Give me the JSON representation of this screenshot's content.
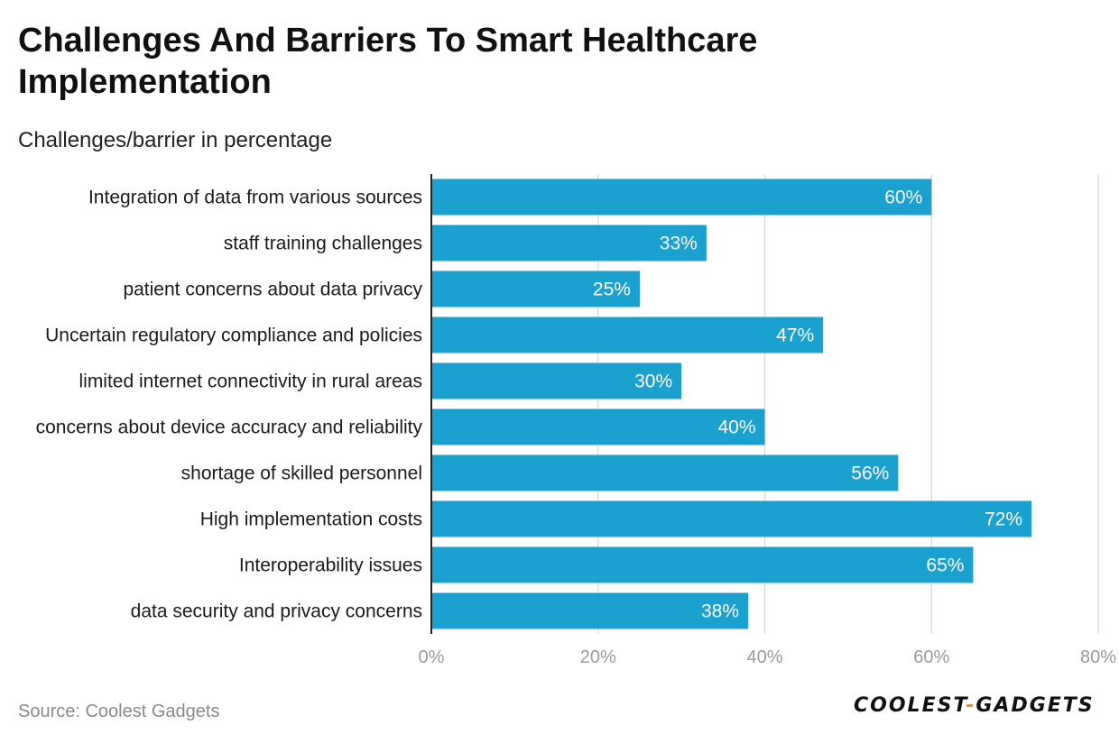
{
  "title": "Challenges And Barriers To Smart Healthcare Implementation",
  "subtitle": "Challenges/barrier in percentage",
  "source": "Source: Coolest Gadgets",
  "logo": {
    "left": "COOLEST",
    "sep": "-",
    "right": "GADGETS"
  },
  "colors": {
    "bar": "#1aa1cf",
    "grid": "#dddddd",
    "axis": "#222222",
    "tick": "#9a9a9a",
    "label": "#ffffff"
  },
  "chart_data": {
    "type": "bar",
    "orientation": "horizontal",
    "categories": [
      "Integration of data from various sources",
      "staff training challenges",
      "patient concerns about data privacy",
      "Uncertain regulatory compliance and policies",
      "limited internet connectivity in rural areas",
      "concerns about device accuracy and reliability",
      "shortage of skilled personnel",
      "High implementation costs",
      "Interoperability issues",
      "data security and privacy concerns"
    ],
    "values": [
      60,
      33,
      25,
      47,
      30,
      40,
      56,
      72,
      65,
      38
    ],
    "value_labels": [
      "60%",
      "33%",
      "25%",
      "47%",
      "30%",
      "40%",
      "56%",
      "72%",
      "65%",
      "38%"
    ],
    "xlim": [
      0,
      80
    ],
    "xticks": [
      0,
      20,
      40,
      60,
      80
    ],
    "xtick_labels": [
      "0%",
      "20%",
      "40%",
      "60%",
      "80%"
    ],
    "xlabel": "",
    "ylabel": "",
    "grid": true
  }
}
